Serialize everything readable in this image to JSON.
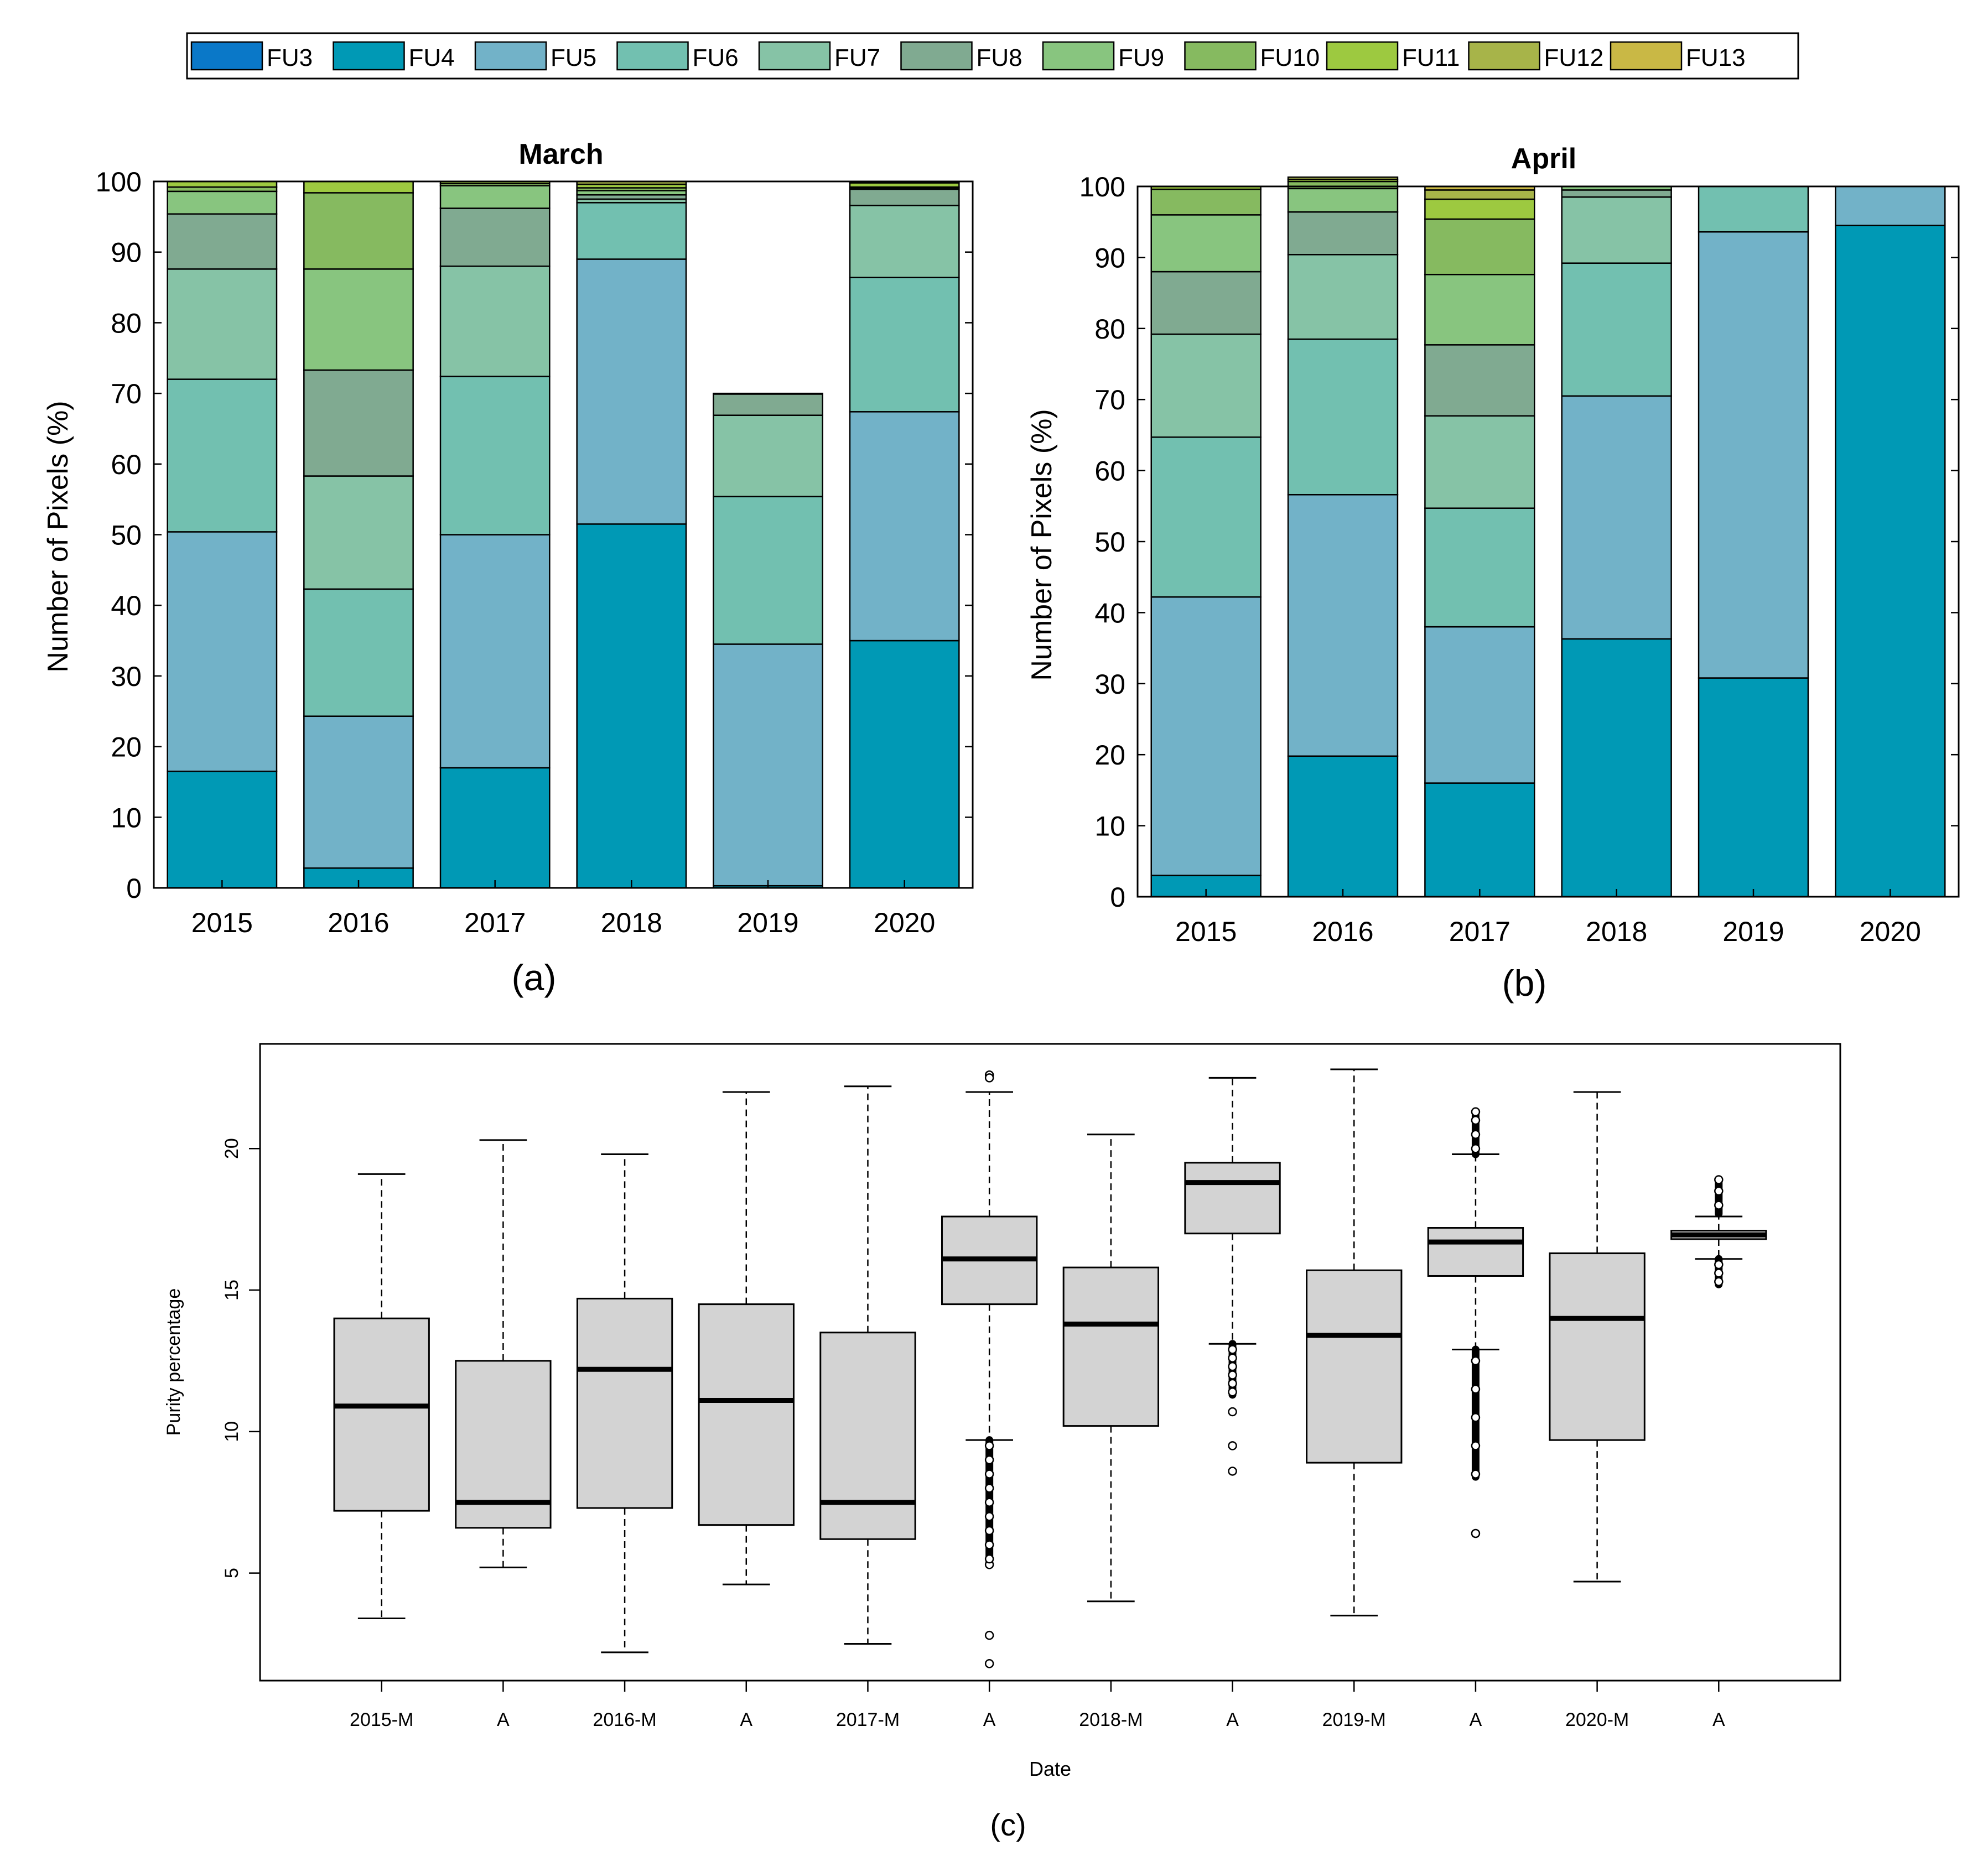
{
  "figure": {
    "legend": {
      "entries": [
        {
          "label": "FU3",
          "color": "#0a78c8"
        },
        {
          "label": "FU4",
          "color": "#0099b5"
        },
        {
          "label": "FU5",
          "color": "#72b2c8"
        },
        {
          "label": "FU6",
          "color": "#72c0b0"
        },
        {
          "label": "FU7",
          "color": "#86c3a6"
        },
        {
          "label": "FU8",
          "color": "#80aa91"
        },
        {
          "label": "FU9",
          "color": "#88c57f"
        },
        {
          "label": "FU10",
          "color": "#86ba60"
        },
        {
          "label": "FU11",
          "color": "#9dc940"
        },
        {
          "label": "FU12",
          "color": "#a7b449"
        },
        {
          "label": "FU13",
          "color": "#c9b845"
        }
      ]
    }
  },
  "chart_data": [
    {
      "type": "bar",
      "stacked": true,
      "title": "March",
      "panel_label": "(a)",
      "xlabel": "",
      "ylabel": "Number of Pixels (%)",
      "ylim": [
        0,
        100
      ],
      "yticks": [
        0,
        10,
        20,
        30,
        40,
        50,
        60,
        70,
        80,
        90,
        100
      ],
      "categories": [
        "2015",
        "2016",
        "2017",
        "2018",
        "2019",
        "2020"
      ],
      "series": [
        {
          "name": "FU3",
          "values": [
            0,
            0,
            0,
            0,
            0,
            0
          ]
        },
        {
          "name": "FU4",
          "values": [
            16.5,
            2.8,
            17.0,
            51.5,
            0.3,
            35.0
          ]
        },
        {
          "name": "FU5",
          "values": [
            33.9,
            21.5,
            33.0,
            37.5,
            34.2,
            32.4
          ]
        },
        {
          "name": "FU6",
          "values": [
            21.6,
            18.0,
            22.4,
            8.0,
            20.9,
            19.0
          ]
        },
        {
          "name": "FU7",
          "values": [
            15.6,
            16.0,
            15.6,
            0.5,
            11.5,
            10.2
          ]
        },
        {
          "name": "FU8",
          "values": [
            7.8,
            15.0,
            8.2,
            0.6,
            3.0,
            2.3
          ]
        },
        {
          "name": "FU9",
          "values": [
            3.2,
            14.3,
            3.2,
            0.6,
            0.1,
            0.2
          ]
        },
        {
          "name": "FU10",
          "values": [
            0.6,
            10.8,
            0.3,
            0.4,
            0,
            0.1
          ]
        },
        {
          "name": "FU11",
          "values": [
            0.8,
            1.6,
            0.3,
            0.5,
            0,
            0.6
          ]
        },
        {
          "name": "FU12",
          "values": [
            0,
            0,
            0,
            0.4,
            0,
            0.2
          ]
        },
        {
          "name": "FU13",
          "values": [
            0,
            0,
            0,
            0,
            0,
            0
          ]
        }
      ]
    },
    {
      "type": "bar",
      "stacked": true,
      "title": "April",
      "panel_label": "(b)",
      "xlabel": "",
      "ylabel": "Number of Pixels (%)",
      "ylim": [
        0,
        100
      ],
      "yticks": [
        0,
        10,
        20,
        30,
        40,
        50,
        60,
        70,
        80,
        90,
        100
      ],
      "categories": [
        "2015",
        "2016",
        "2017",
        "2018",
        "2019",
        "2020"
      ],
      "series": [
        {
          "name": "FU3",
          "values": [
            0,
            0,
            0,
            0,
            0,
            0
          ]
        },
        {
          "name": "FU4",
          "values": [
            3.0,
            19.8,
            16.0,
            36.3,
            30.8,
            94.5
          ]
        },
        {
          "name": "FU5",
          "values": [
            39.2,
            36.8,
            22.0,
            34.2,
            62.8,
            5.5
          ]
        },
        {
          "name": "FU6",
          "values": [
            22.5,
            21.9,
            16.7,
            18.7,
            6.4,
            0
          ]
        },
        {
          "name": "FU7",
          "values": [
            14.5,
            11.9,
            13.0,
            9.3,
            0,
            0
          ]
        },
        {
          "name": "FU8",
          "values": [
            8.8,
            6.0,
            10.0,
            1.0,
            0,
            0
          ]
        },
        {
          "name": "FU9",
          "values": [
            8.0,
            3.3,
            9.9,
            0.5,
            0,
            0
          ]
        },
        {
          "name": "FU10",
          "values": [
            3.6,
            1.0,
            7.8,
            0,
            0,
            0
          ]
        },
        {
          "name": "FU11",
          "values": [
            0.4,
            0.3,
            2.8,
            0,
            0,
            0
          ]
        },
        {
          "name": "FU12",
          "values": [
            0,
            0.3,
            1.3,
            0,
            0,
            0
          ]
        },
        {
          "name": "FU13",
          "values": [
            0,
            0,
            0.5,
            0,
            0,
            0
          ]
        }
      ]
    },
    {
      "type": "box",
      "title": "",
      "panel_label": "(c)",
      "xlabel": "Date",
      "ylabel": "Purity percentage",
      "ylim": [
        1.2,
        23.7
      ],
      "yticks": [
        5,
        10,
        15,
        20
      ],
      "box_fill": "#d3d3d3",
      "boxes": [
        {
          "label": "2015-M",
          "whisker_low": 3.4,
          "q1": 7.2,
          "median": 10.9,
          "q3": 14.0,
          "whisker_high": 19.1,
          "outliers": []
        },
        {
          "label": "A",
          "whisker_low": 5.2,
          "q1": 6.6,
          "median": 7.5,
          "q3": 12.5,
          "whisker_high": 20.3,
          "outliers": []
        },
        {
          "label": "2016-M",
          "whisker_low": 2.2,
          "q1": 7.3,
          "median": 12.2,
          "q3": 14.7,
          "whisker_high": 19.8,
          "outliers": []
        },
        {
          "label": "A",
          "whisker_low": 4.6,
          "q1": 6.7,
          "median": 11.1,
          "q3": 14.5,
          "whisker_high": 22.0,
          "outliers": []
        },
        {
          "label": "2017-M",
          "whisker_low": 2.5,
          "q1": 6.2,
          "median": 7.5,
          "q3": 13.5,
          "whisker_high": 22.2,
          "outliers": []
        },
        {
          "label": "A",
          "whisker_low": 9.7,
          "q1": 14.5,
          "median": 16.1,
          "q3": 17.6,
          "whisker_high": 22.0,
          "outliers": [
            22.6,
            22.5,
            5.3,
            5.5,
            6.0,
            6.5,
            7.0,
            7.5,
            8.0,
            8.5,
            9.0,
            9.5,
            2.8,
            1.8
          ],
          "outlier_band": [
            5.3,
            9.7
          ]
        },
        {
          "label": "2018-M",
          "whisker_low": 4.0,
          "q1": 10.2,
          "median": 13.8,
          "q3": 15.8,
          "whisker_high": 20.5,
          "outliers": []
        },
        {
          "label": "A",
          "whisker_low": 13.1,
          "q1": 17.0,
          "median": 18.8,
          "q3": 19.5,
          "whisker_high": 22.5,
          "outliers": [
            12.9,
            12.6,
            12.3,
            12.0,
            11.7,
            11.4,
            10.7,
            9.5,
            8.6
          ],
          "outlier_band": [
            11.3,
            13.1
          ]
        },
        {
          "label": "2019-M",
          "whisker_low": 3.5,
          "q1": 8.9,
          "median": 13.4,
          "q3": 15.7,
          "whisker_high": 22.8,
          "outliers": []
        },
        {
          "label": "A",
          "whisker_low": 12.9,
          "q1": 15.5,
          "median": 16.7,
          "q3": 17.2,
          "whisker_high": 19.8,
          "outliers": [
            21.3,
            21.0,
            20.5,
            20.0,
            12.5,
            11.5,
            10.5,
            9.5,
            8.5,
            6.4
          ],
          "outlier_band": [
            8.4,
            12.9
          ],
          "outlier_band_high": [
            19.8,
            21.3
          ]
        },
        {
          "label": "2020-M",
          "whisker_low": 4.7,
          "q1": 9.7,
          "median": 14.0,
          "q3": 16.3,
          "whisker_high": 22.0,
          "outliers": []
        },
        {
          "label": "A",
          "whisker_low": 16.1,
          "q1": 16.8,
          "median": 16.95,
          "q3": 17.1,
          "whisker_high": 17.6,
          "outliers": [
            18.9,
            18.5,
            18.0,
            15.9,
            15.6,
            15.3
          ],
          "outlier_band": [
            15.2,
            16.1
          ],
          "outlier_band_high": [
            17.7,
            18.9
          ]
        }
      ]
    }
  ]
}
